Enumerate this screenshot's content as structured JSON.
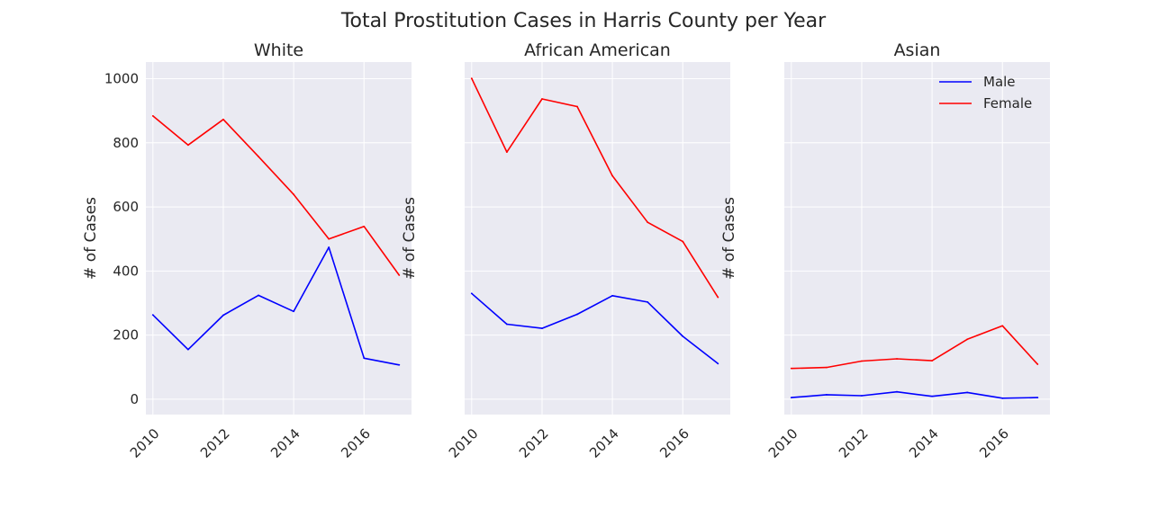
{
  "figure": {
    "suptitle": "Total Prostitution Cases in Harris County per Year"
  },
  "colors": {
    "male": "#0000ff",
    "female": "#ff0000",
    "axes_background": "#eaeaf2",
    "grid": "#ffffff",
    "text": "#262626"
  },
  "chart_data": [
    {
      "type": "line",
      "title": "White",
      "xlabel": "",
      "ylabel": "# of Cases",
      "x": [
        2010,
        2011,
        2012,
        2013,
        2014,
        2015,
        2016,
        2017
      ],
      "xticks": [
        2010,
        2012,
        2014,
        2016
      ],
      "yticks": [
        0,
        200,
        400,
        600,
        800,
        1000
      ],
      "show_ytick_labels": true,
      "xlim": [
        2009.8,
        2017.35
      ],
      "ylim": [
        -48,
        1052
      ],
      "grid": true,
      "series": [
        {
          "name": "Male",
          "color": "#0000ff",
          "values": [
            263,
            155,
            262,
            324,
            274,
            474,
            128,
            107
          ]
        },
        {
          "name": "Female",
          "color": "#ff0000",
          "values": [
            884,
            793,
            873,
            757,
            639,
            500,
            539,
            387
          ]
        }
      ]
    },
    {
      "type": "line",
      "title": "African American",
      "xlabel": "",
      "ylabel": "# of Cases",
      "x": [
        2010,
        2011,
        2012,
        2013,
        2014,
        2015,
        2016,
        2017
      ],
      "xticks": [
        2010,
        2012,
        2014,
        2016
      ],
      "yticks": [
        0,
        200,
        400,
        600,
        800,
        1000
      ],
      "show_ytick_labels": false,
      "xlim": [
        2009.8,
        2017.35
      ],
      "ylim": [
        -48,
        1052
      ],
      "grid": true,
      "series": [
        {
          "name": "Male",
          "color": "#0000ff",
          "values": [
            330,
            234,
            221,
            265,
            323,
            303,
            196,
            111
          ]
        },
        {
          "name": "Female",
          "color": "#ff0000",
          "values": [
            1001,
            771,
            937,
            913,
            697,
            552,
            492,
            318
          ]
        }
      ]
    },
    {
      "type": "line",
      "title": "Asian",
      "xlabel": "",
      "ylabel": "# of Cases",
      "x": [
        2010,
        2011,
        2012,
        2013,
        2014,
        2015,
        2016,
        2017
      ],
      "xticks": [
        2010,
        2012,
        2014,
        2016
      ],
      "yticks": [
        0,
        200,
        400,
        600,
        800,
        1000
      ],
      "show_ytick_labels": false,
      "xlim": [
        2009.8,
        2017.35
      ],
      "ylim": [
        -48,
        1052
      ],
      "grid": true,
      "legend": {
        "placement": "top-right",
        "entries": [
          "Male",
          "Female"
        ]
      },
      "series": [
        {
          "name": "Male",
          "color": "#0000ff",
          "values": [
            5,
            14,
            11,
            23,
            9,
            21,
            3,
            5
          ]
        },
        {
          "name": "Female",
          "color": "#ff0000",
          "values": [
            96,
            99,
            119,
            126,
            120,
            187,
            229,
            109
          ]
        }
      ]
    }
  ]
}
